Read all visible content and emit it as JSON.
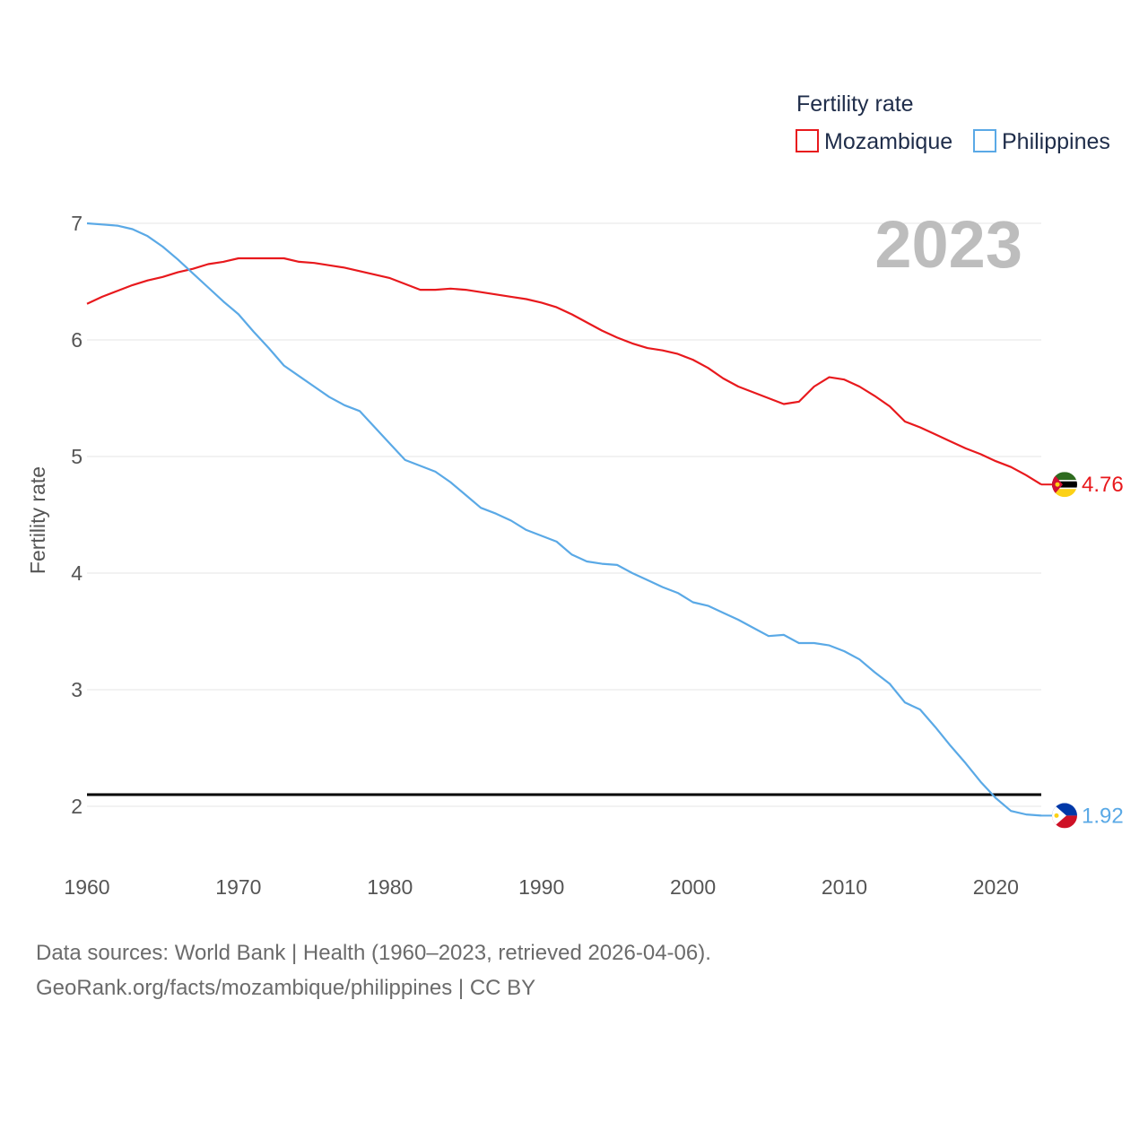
{
  "chart_data": {
    "type": "line",
    "legend_title": "Fertility rate",
    "ylabel": "Fertility rate",
    "xlabel": "",
    "year_label": "2023",
    "xlim": [
      1960,
      2023
    ],
    "ylim": [
      1.5,
      7.1
    ],
    "x_ticks": [
      "1960",
      "1970",
      "1980",
      "1990",
      "2000",
      "2010",
      "2020"
    ],
    "y_ticks": [
      "2",
      "3",
      "4",
      "5",
      "6",
      "7"
    ],
    "reference_line": {
      "value": 2.1,
      "color": "#000000"
    },
    "x": [
      1960,
      1961,
      1962,
      1963,
      1964,
      1965,
      1966,
      1967,
      1968,
      1969,
      1970,
      1971,
      1972,
      1973,
      1974,
      1975,
      1976,
      1977,
      1978,
      1979,
      1980,
      1981,
      1982,
      1983,
      1984,
      1985,
      1986,
      1987,
      1988,
      1989,
      1990,
      1991,
      1992,
      1993,
      1994,
      1995,
      1996,
      1997,
      1998,
      1999,
      2000,
      2001,
      2002,
      2003,
      2004,
      2005,
      2006,
      2007,
      2008,
      2009,
      2010,
      2011,
      2012,
      2013,
      2014,
      2015,
      2016,
      2017,
      2018,
      2019,
      2020,
      2021,
      2022,
      2023
    ],
    "series": [
      {
        "name": "Mozambique",
        "color": "#e8191d",
        "end_label": "4.76",
        "flag_icon": "mozambique-flag-icon",
        "values": [
          6.31,
          6.37,
          6.42,
          6.47,
          6.51,
          6.54,
          6.58,
          6.61,
          6.65,
          6.67,
          6.7,
          6.7,
          6.7,
          6.7,
          6.67,
          6.66,
          6.64,
          6.62,
          6.59,
          6.56,
          6.53,
          6.48,
          6.43,
          6.43,
          6.44,
          6.43,
          6.41,
          6.39,
          6.37,
          6.35,
          6.32,
          6.28,
          6.22,
          6.15,
          6.08,
          6.02,
          5.97,
          5.93,
          5.91,
          5.88,
          5.83,
          5.76,
          5.67,
          5.6,
          5.55,
          5.5,
          5.45,
          5.47,
          5.6,
          5.68,
          5.66,
          5.6,
          5.52,
          5.43,
          5.3,
          5.25,
          5.19,
          5.13,
          5.07,
          5.02,
          4.96,
          4.91,
          4.84,
          4.76
        ]
      },
      {
        "name": "Philippines",
        "color": "#5aa9e6",
        "end_label": "1.92",
        "flag_icon": "philippines-flag-icon",
        "values": [
          7.0,
          6.99,
          6.98,
          6.95,
          6.89,
          6.8,
          6.69,
          6.57,
          6.45,
          6.33,
          6.22,
          6.07,
          5.93,
          5.78,
          5.69,
          5.6,
          5.51,
          5.44,
          5.39,
          5.25,
          5.11,
          4.97,
          4.92,
          4.87,
          4.78,
          4.67,
          4.56,
          4.51,
          4.45,
          4.37,
          4.32,
          4.27,
          4.16,
          4.1,
          4.08,
          4.07,
          4.0,
          3.94,
          3.88,
          3.83,
          3.75,
          3.72,
          3.66,
          3.6,
          3.53,
          3.46,
          3.47,
          3.4,
          3.4,
          3.38,
          3.33,
          3.26,
          3.15,
          3.05,
          2.89,
          2.83,
          2.68,
          2.52,
          2.37,
          2.21,
          2.07,
          1.96,
          1.93,
          1.92
        ]
      }
    ]
  },
  "footer": {
    "line1": "Data sources: World Bank | Health (1960–2023, retrieved 2026-04-06).",
    "line2": "GeoRank.org/facts/mozambique/philippines | CC BY"
  }
}
